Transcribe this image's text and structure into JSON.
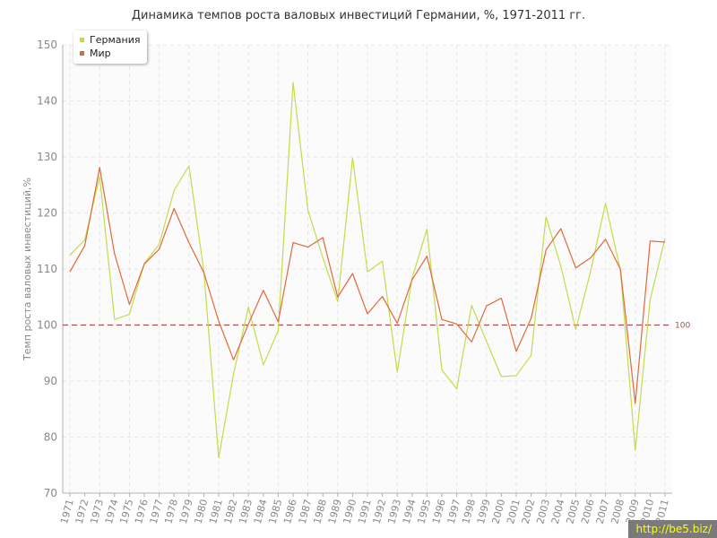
{
  "title": "Динамика темпов роста валовых инвестиций Германии, %, 1971-2011 гг.",
  "watermark": "http://be5.biz/",
  "colors": {
    "germany": "#c3dc4a",
    "world": "#e0693a",
    "reference": "#a05050",
    "grid": "#e6e6e6",
    "axis": "#b0b0b0",
    "tick_text": "#888888"
  },
  "chart_data": {
    "type": "line",
    "title": "Динамика темпов роста валовых инвестиций Германии, %, 1971-2011 гг.",
    "xlabel": "",
    "ylabel": "Темп роста валовых инвестиций,%",
    "ylim": [
      70,
      150
    ],
    "yticks": [
      70,
      80,
      90,
      100,
      110,
      120,
      130,
      140,
      150
    ],
    "grid": true,
    "legend_position": "top-left",
    "reference_line": {
      "value": 100,
      "label": "100"
    },
    "x": [
      "1971",
      "1972",
      "1973",
      "1974",
      "1975",
      "1976",
      "1977",
      "1978",
      "1979",
      "1980",
      "1981",
      "1982",
      "1983",
      "1984",
      "1985",
      "1986",
      "1987",
      "1988",
      "1989",
      "1990",
      "1991",
      "1992",
      "1993",
      "1994",
      "1995",
      "1996",
      "1997",
      "1998",
      "1999",
      "2000",
      "2001",
      "2002",
      "2003",
      "2004",
      "2005",
      "2006",
      "2007",
      "2008",
      "2009",
      "2010",
      "2011"
    ],
    "series": [
      {
        "name": "Германия",
        "color": "#c3dc4a",
        "values": [
          112.5,
          115.2,
          126.5,
          101.0,
          101.9,
          111.0,
          114.4,
          124.0,
          128.4,
          109.7,
          76.3,
          91.3,
          103.2,
          92.9,
          99.0,
          143.3,
          120.5,
          112.0,
          104.2,
          129.8,
          109.5,
          111.4,
          91.6,
          108.4,
          117.1,
          92.0,
          88.6,
          103.5,
          97.1,
          90.8,
          91.0,
          94.6,
          119.3,
          110.5,
          99.2,
          109.6,
          121.7,
          109.8,
          77.6,
          104.5,
          115.5
        ]
      },
      {
        "name": "Мир",
        "color": "#e0693a",
        "values": [
          109.5,
          114.2,
          128.1,
          112.7,
          103.7,
          110.9,
          113.5,
          120.8,
          114.7,
          109.4,
          100.7,
          93.8,
          100.2,
          106.2,
          100.6,
          114.7,
          113.9,
          115.6,
          105.0,
          109.2,
          102.0,
          105.1,
          100.3,
          108.1,
          112.3,
          101.0,
          100.2,
          97.0,
          103.4,
          104.8,
          95.3,
          101.2,
          113.4,
          117.2,
          110.2,
          112.0,
          115.3,
          110.0,
          86.0,
          115.0,
          114.8
        ]
      }
    ]
  }
}
